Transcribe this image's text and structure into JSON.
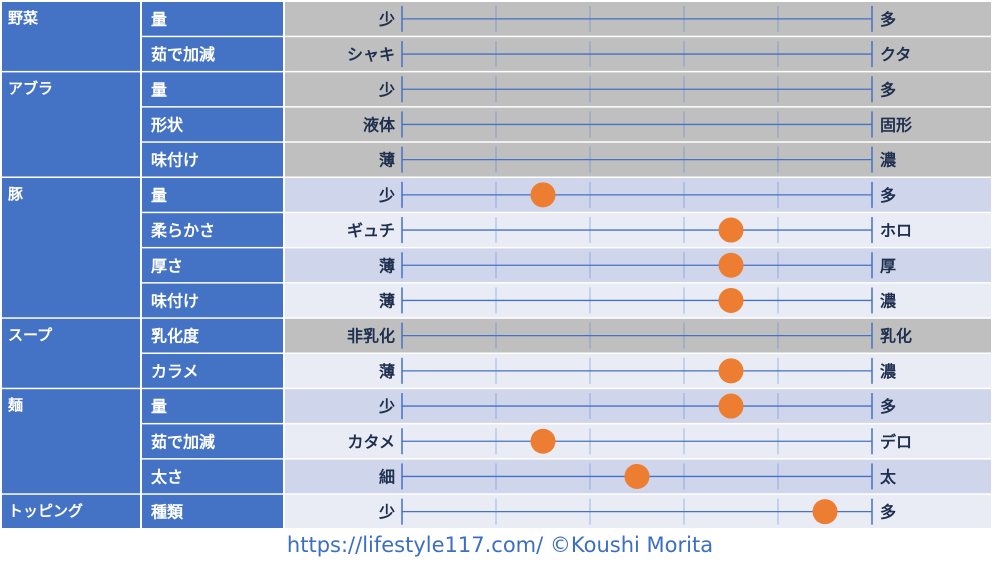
{
  "chart_data": {
    "type": "scatter",
    "scale_steps": 5,
    "scale_min": 0,
    "scale_max": 5,
    "colors": {
      "category_bg": "#4472c4",
      "row_blank": "#bfbfbf",
      "row_light": "#e9ecf5",
      "row_dark": "#cfd5ea",
      "axis_line": "#4472c4",
      "marker": "#ed7d31",
      "end_label": "#1f2f4f"
    },
    "categories": [
      {
        "name": "野菜",
        "items": [
          {
            "name": "量",
            "left": "少",
            "right": "多",
            "value": null
          },
          {
            "name": "茹で加減",
            "left": "シャキ",
            "right": "クタ",
            "value": null
          }
        ]
      },
      {
        "name": "アブラ",
        "items": [
          {
            "name": "量",
            "left": "少",
            "right": "多",
            "value": null
          },
          {
            "name": "形状",
            "left": "液体",
            "right": "固形",
            "value": null
          },
          {
            "name": "味付け",
            "left": "薄",
            "right": "濃",
            "value": null
          }
        ]
      },
      {
        "name": "豚",
        "items": [
          {
            "name": "量",
            "left": "少",
            "right": "多",
            "value": 1.5
          },
          {
            "name": "柔らかさ",
            "left": "ギュチ",
            "right": "ホロ",
            "value": 3.5
          },
          {
            "name": "厚さ",
            "left": "薄",
            "right": "厚",
            "value": 3.5
          },
          {
            "name": "味付け",
            "left": "薄",
            "right": "濃",
            "value": 3.5
          }
        ]
      },
      {
        "name": "スープ",
        "items": [
          {
            "name": "乳化度",
            "left": "非乳化",
            "right": "乳化",
            "value": null
          },
          {
            "name": "カラメ",
            "left": "薄",
            "right": "濃",
            "value": 3.5
          }
        ]
      },
      {
        "name": "麺",
        "items": [
          {
            "name": "量",
            "left": "少",
            "right": "多",
            "value": 3.5
          },
          {
            "name": "茹で加減",
            "left": "カタメ",
            "right": "デロ",
            "value": 1.5
          },
          {
            "name": "太さ",
            "left": "細",
            "right": "太",
            "value": 2.5
          }
        ]
      },
      {
        "name": "トッピング",
        "items": [
          {
            "name": "種類",
            "left": "少",
            "right": "多",
            "value": 4.5
          }
        ]
      }
    ]
  },
  "footer": {
    "text": "https://lifestyle117.com/  ©Koushi Morita"
  }
}
